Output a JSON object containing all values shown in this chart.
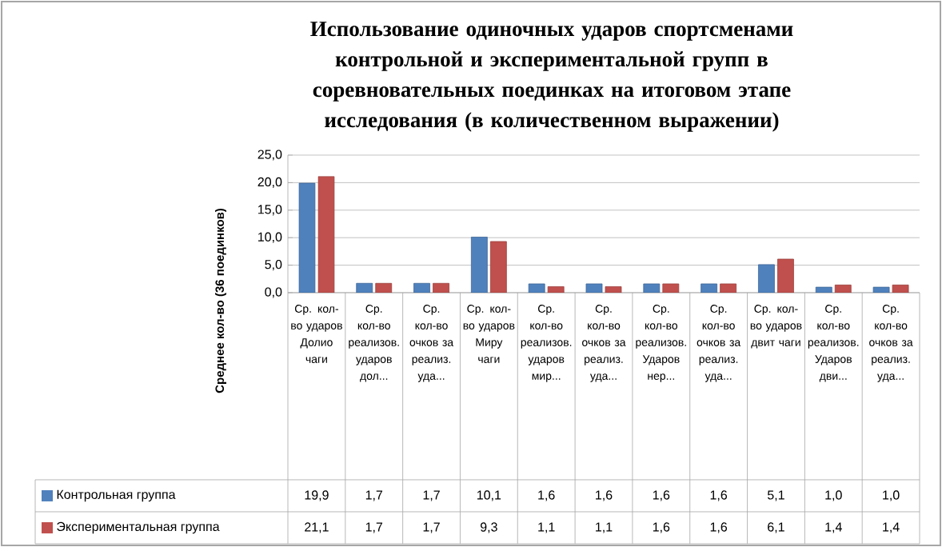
{
  "chart_data": {
    "type": "bar",
    "title": "Использование одиночных ударов спортсменами контрольной и экспериментальной групп в соревновательных поединках на итоговом этапе исследования (в количественном выражении)",
    "ylabel": "Среднее кол-во (36 поединков)",
    "categories": [
      "Ср. кол-во ударов Долио чаги",
      "Ср. кол-во реализов. ударов дол...",
      "Ср. кол-во очков за реализ. уда...",
      "Ср. кол-во ударов Миру чаги",
      "Ср. кол-во реализов. ударов мир...",
      "Ср. кол-во очков за реализ. уда...",
      "Ср. кол-во реализов. Ударов нер...",
      "Ср. кол-во очков за реализ. уда...",
      "Ср. кол-во ударов двит чаги",
      "Ср. кол-во реализов. Ударов дви...",
      "Ср. кол-во очков за реализ. уда..."
    ],
    "series": [
      {
        "name": "Контрольная группа",
        "color": "#4f81bd",
        "values": [
          19.9,
          1.7,
          1.7,
          10.1,
          1.6,
          1.6,
          1.6,
          1.6,
          5.1,
          1.0,
          1.0
        ],
        "value_labels": [
          "19,9",
          "1,7",
          "1,7",
          "10,1",
          "1,6",
          "1,6",
          "1,6",
          "1,6",
          "5,1",
          "1,0",
          "1,0"
        ]
      },
      {
        "name": "Экспериментальная группа",
        "color": "#c0504d",
        "values": [
          21.1,
          1.7,
          1.7,
          9.3,
          1.1,
          1.1,
          1.6,
          1.6,
          6.1,
          1.4,
          1.4
        ],
        "value_labels": [
          "21,1",
          "1,7",
          "1,7",
          "9,3",
          "1,1",
          "1,1",
          "1,6",
          "1,6",
          "6,1",
          "1,4",
          "1,4"
        ]
      }
    ],
    "ylim": [
      0,
      25
    ],
    "yticks": [
      {
        "value": 0,
        "label": "0,0"
      },
      {
        "value": 5,
        "label": "5,0"
      },
      {
        "value": 10,
        "label": "10,0"
      },
      {
        "value": 15,
        "label": "15,0"
      },
      {
        "value": 20,
        "label": "20,0"
      },
      {
        "value": 25,
        "label": "25,0"
      }
    ],
    "grid": "y",
    "legend": "bottom"
  }
}
